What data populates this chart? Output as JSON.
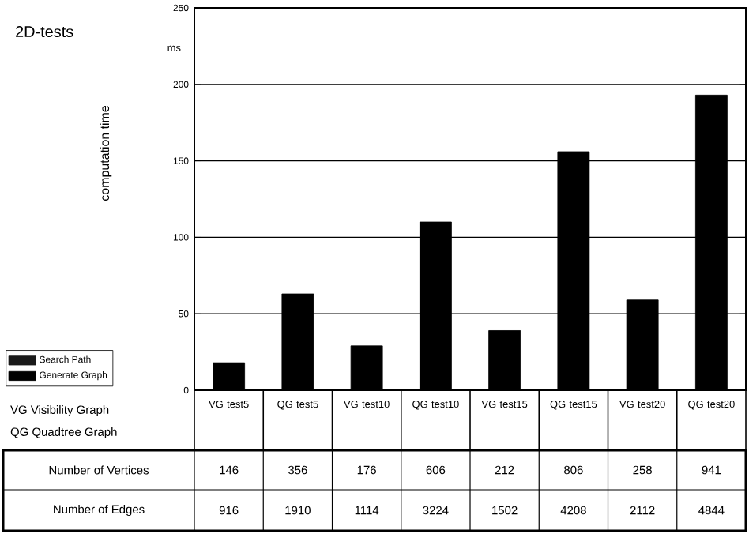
{
  "chart_data": {
    "type": "bar",
    "title": "2D-tests",
    "ylabel": "computation time",
    "categories": [
      "VG test5",
      "QG test5",
      "VG test10",
      "QG test10",
      "VG test15",
      "QG test15",
      "VG test20",
      "QG test20"
    ],
    "series": [
      {
        "name": "Search Path",
        "color": "#1a1a1a",
        "values": [
          null,
          null,
          null,
          null,
          null,
          null,
          null,
          null
        ]
      },
      {
        "name": "Generate Graph",
        "color": "#000000",
        "values": [
          18,
          63,
          29,
          110,
          39,
          156,
          59,
          193
        ]
      }
    ],
    "stacked": true,
    "ylim": [
      0,
      250
    ],
    "yticks": [
      0,
      50,
      100,
      150,
      200,
      250
    ],
    "grid": "y",
    "legend": "left",
    "annotations": [
      "ms",
      "VG  Visibility Graph",
      "QG  Quadtree Graph",
      "Number of Vertices",
      "146",
      "356",
      "176",
      "606",
      "212",
      "806",
      "258",
      "941",
      "Number of Edges",
      "916",
      "1910",
      "1114",
      "3224",
      "1502",
      "4208",
      "2112",
      "4844"
    ]
  }
}
